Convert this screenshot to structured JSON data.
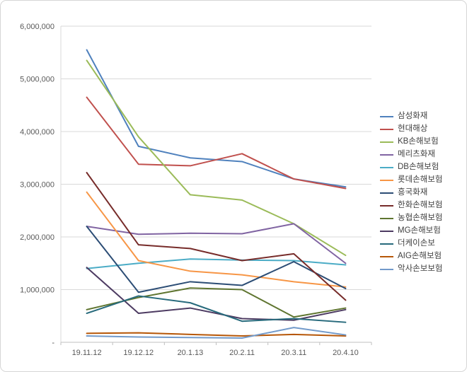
{
  "chart_data": {
    "type": "line",
    "title": "",
    "x_categories": [
      "19.11.12",
      "19.12.12",
      "20.1.13",
      "20.2.11",
      "20.3.11",
      "20.4.10"
    ],
    "y_ticks": [
      "6,000,000",
      "5,000,000",
      "4,000,000",
      "3,000,000",
      "2,000,000",
      "1,000,000",
      "-"
    ],
    "ylim": [
      0,
      6000000
    ],
    "y_gridline_interval": 1000000,
    "grid": true,
    "legend_position": "right",
    "series": [
      {
        "name": "삼성화재",
        "color": "#4F81BD",
        "values": [
          5550000,
          3720000,
          3500000,
          3430000,
          3100000,
          2950000
        ]
      },
      {
        "name": "현대해상",
        "color": "#C0504D",
        "values": [
          4650000,
          3380000,
          3350000,
          3580000,
          3100000,
          2920000
        ]
      },
      {
        "name": "KB손해보험",
        "color": "#9BBB59",
        "values": [
          5350000,
          3900000,
          2800000,
          2700000,
          2250000,
          1650000
        ]
      },
      {
        "name": "메리츠화재",
        "color": "#8064A2",
        "values": [
          2200000,
          2050000,
          2070000,
          2060000,
          2250000,
          1500000
        ]
      },
      {
        "name": "DB손해보험",
        "color": "#4BACC6",
        "values": [
          1400000,
          1500000,
          1580000,
          1560000,
          1550000,
          1470000
        ]
      },
      {
        "name": "롯데손해보험",
        "color": "#F79646",
        "values": [
          2850000,
          1550000,
          1350000,
          1280000,
          1150000,
          1050000
        ]
      },
      {
        "name": "흥국화재",
        "color": "#2C4D75",
        "values": [
          2200000,
          950000,
          1150000,
          1080000,
          1530000,
          1020000
        ]
      },
      {
        "name": "한화손해보험",
        "color": "#772C2A",
        "values": [
          3220000,
          1850000,
          1780000,
          1550000,
          1680000,
          800000
        ]
      },
      {
        "name": "농협손해보험",
        "color": "#5F7530",
        "values": [
          620000,
          850000,
          1030000,
          1000000,
          480000,
          650000
        ]
      },
      {
        "name": "MG손해보험",
        "color": "#4D3B62",
        "values": [
          1420000,
          550000,
          650000,
          450000,
          420000,
          620000
        ]
      },
      {
        "name": "더케이손보",
        "color": "#276A7C",
        "values": [
          550000,
          880000,
          750000,
          400000,
          450000,
          380000
        ]
      },
      {
        "name": "AIG손해보험",
        "color": "#B65708",
        "values": [
          170000,
          180000,
          150000,
          120000,
          150000,
          120000
        ]
      },
      {
        "name": "악사손보보험",
        "color": "#729ACA",
        "values": [
          120000,
          100000,
          90000,
          80000,
          280000,
          140000
        ]
      }
    ]
  }
}
